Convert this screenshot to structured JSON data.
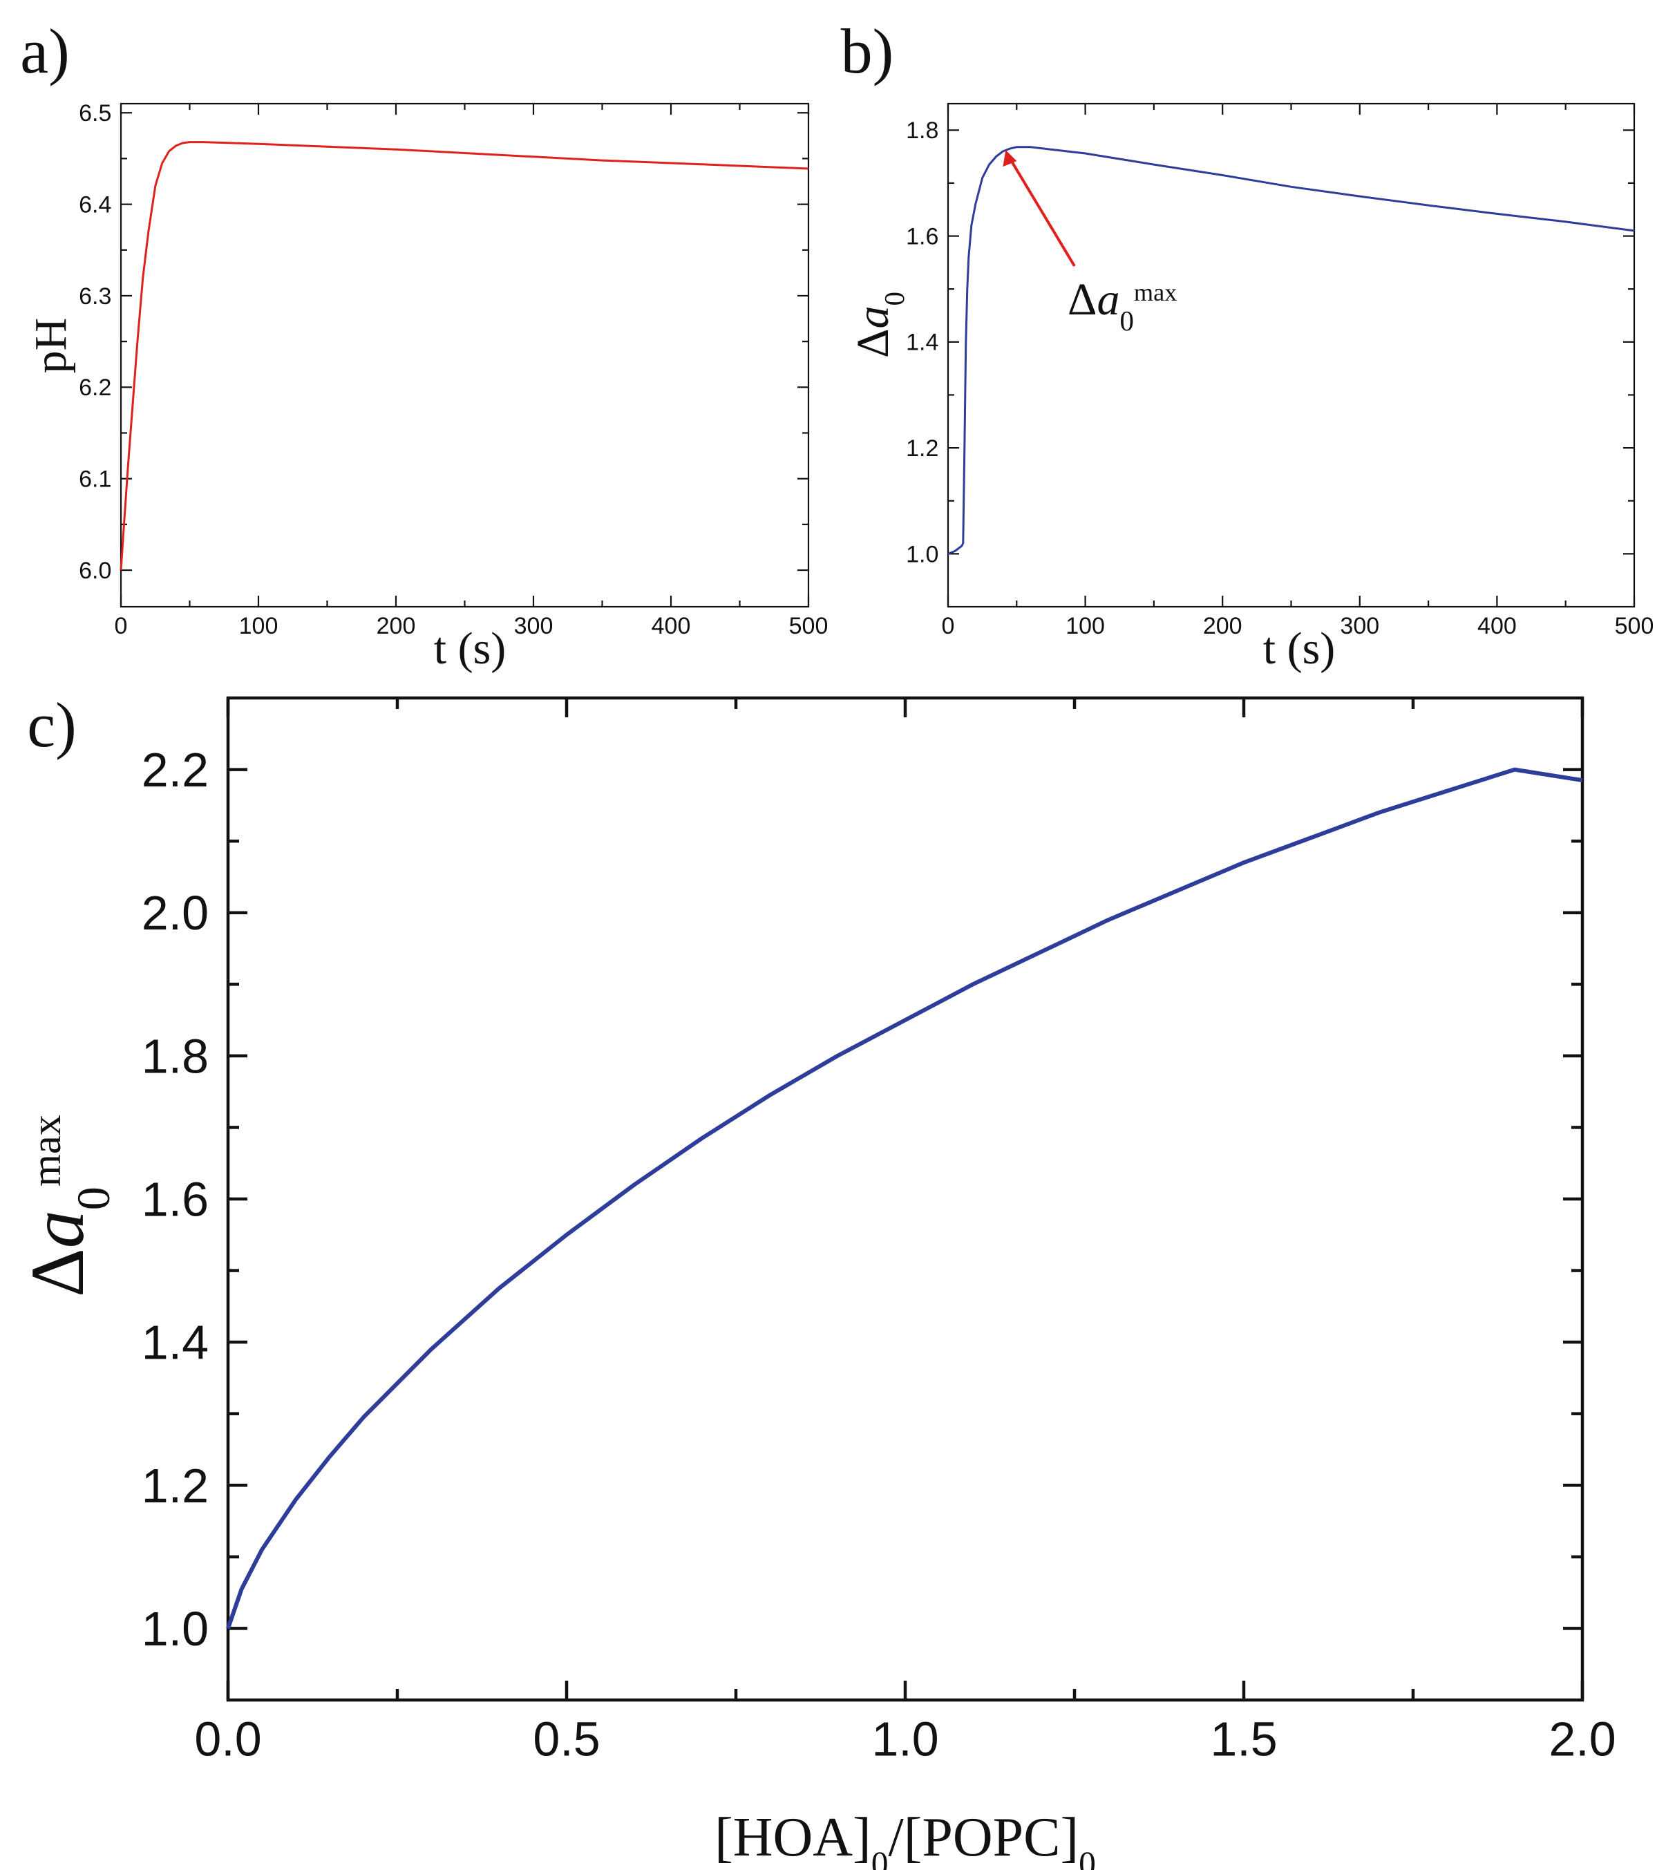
{
  "chart_data": [
    {
      "panel": "a)",
      "type": "line",
      "title": "",
      "xlabel": "t (s)",
      "ylabel": "pH",
      "xlim": [
        0,
        500
      ],
      "ylim": [
        5.96,
        6.51
      ],
      "xticks": [
        0,
        100,
        200,
        300,
        400,
        500
      ],
      "yticks": [
        6.0,
        6.1,
        6.2,
        6.3,
        6.4,
        6.5
      ],
      "ytick_decimals": 1,
      "minor_ticks": true,
      "grid": false,
      "legend": "none",
      "series": [
        {
          "color": "#e0201c",
          "x": [
            0,
            2,
            5,
            8,
            12,
            16,
            20,
            25,
            30,
            35,
            40,
            45,
            50,
            60,
            80,
            100,
            150,
            200,
            250,
            300,
            350,
            400,
            450,
            500
          ],
          "y": [
            6.0,
            6.045,
            6.11,
            6.17,
            6.25,
            6.32,
            6.37,
            6.42,
            6.445,
            6.458,
            6.464,
            6.467,
            6.468,
            6.468,
            6.467,
            6.466,
            6.463,
            6.46,
            6.456,
            6.452,
            6.448,
            6.445,
            6.442,
            6.439
          ]
        }
      ]
    },
    {
      "panel": "b)",
      "type": "line",
      "title": "",
      "xlabel": "t (s)",
      "ylabel": "Δa0",
      "xlim": [
        0,
        500
      ],
      "ylim": [
        0.9,
        1.85
      ],
      "xticks": [
        0,
        100,
        200,
        300,
        400,
        500
      ],
      "yticks": [
        1.0,
        1.2,
        1.4,
        1.6,
        1.8
      ],
      "ytick_decimals": 1,
      "minor_ticks": true,
      "grid": false,
      "legend": "none",
      "annotation": {
        "text": "Δa0max",
        "x": 42,
        "y": 1.765
      },
      "series": [
        {
          "color": "#2e3d9a",
          "x": [
            0,
            5,
            10,
            11,
            12,
            13,
            14,
            15,
            17,
            20,
            25,
            30,
            35,
            40,
            45,
            50,
            60,
            80,
            100,
            150,
            200,
            250,
            300,
            350,
            400,
            450,
            500
          ],
          "y": [
            1.0,
            1.005,
            1.015,
            1.02,
            1.2,
            1.4,
            1.5,
            1.56,
            1.62,
            1.66,
            1.71,
            1.735,
            1.75,
            1.76,
            1.765,
            1.768,
            1.768,
            1.762,
            1.756,
            1.735,
            1.715,
            1.693,
            1.675,
            1.658,
            1.642,
            1.627,
            1.61
          ]
        }
      ]
    },
    {
      "panel": "c)",
      "type": "line",
      "title": "",
      "xlabel": "[HOA]0/[POPC]0",
      "ylabel": "Δa0max",
      "xlim": [
        0.0,
        2.0
      ],
      "ylim": [
        0.9,
        2.3
      ],
      "xticks": [
        0.0,
        0.5,
        1.0,
        1.5,
        2.0
      ],
      "yticks": [
        1.0,
        1.2,
        1.4,
        1.6,
        1.8,
        2.0,
        2.2
      ],
      "ytick_decimals": 1,
      "minor_ticks": true,
      "grid": false,
      "legend": "none",
      "series": [
        {
          "color": "#2e3d9a",
          "x": [
            0.0,
            0.02,
            0.05,
            0.1,
            0.15,
            0.2,
            0.3,
            0.4,
            0.5,
            0.6,
            0.7,
            0.8,
            0.9,
            1.0,
            1.1,
            1.2,
            1.3,
            1.4,
            1.5,
            1.6,
            1.7,
            1.8,
            1.9,
            2.0
          ],
          "y": [
            1.0,
            1.055,
            1.11,
            1.18,
            1.24,
            1.295,
            1.39,
            1.475,
            1.55,
            1.62,
            1.685,
            1.745,
            1.8,
            1.85,
            1.9,
            1.945,
            1.99,
            2.03,
            2.07,
            2.105,
            2.14,
            2.17,
            2.2,
            2.185
          ]
        }
      ]
    }
  ]
}
